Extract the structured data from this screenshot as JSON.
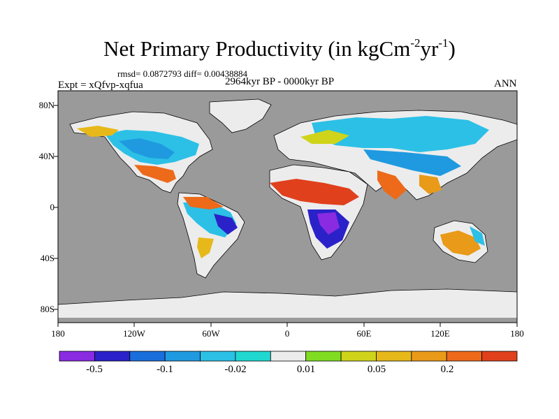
{
  "title": {
    "main": "Net Primary Productivity (in kgCm",
    "exp1": "-2",
    "mid": "yr",
    "exp2": "-1",
    "close": ")"
  },
  "stats": "rmsd= 0.0872793 diff= 0.00438884",
  "experiment": "Expt = xQfvp-xqfua",
  "period": "2964kyr BP - 0000kyr BP",
  "season": "ANN",
  "lat_ticks": [
    "80N",
    "40N",
    "0",
    "40S",
    "80S"
  ],
  "lon_ticks": [
    "180",
    "120W",
    "60W",
    "0",
    "60E",
    "120E",
    "180"
  ],
  "colorbar": {
    "colors": [
      "#8a2be2",
      "#2a22c8",
      "#1a6edc",
      "#1f9ae0",
      "#2cc0e6",
      "#20d8d0",
      "#ececec",
      "#7fdc20",
      "#cfd41a",
      "#e6b81a",
      "#e89a18",
      "#ec6a1a",
      "#e0401c"
    ],
    "labels": [
      "-0.5",
      "-0.1",
      "-0.02",
      "0.01",
      "0.05",
      "0.2"
    ]
  },
  "colors": {
    "ocean": "#9a9a9a",
    "neutral": "#ececec"
  }
}
